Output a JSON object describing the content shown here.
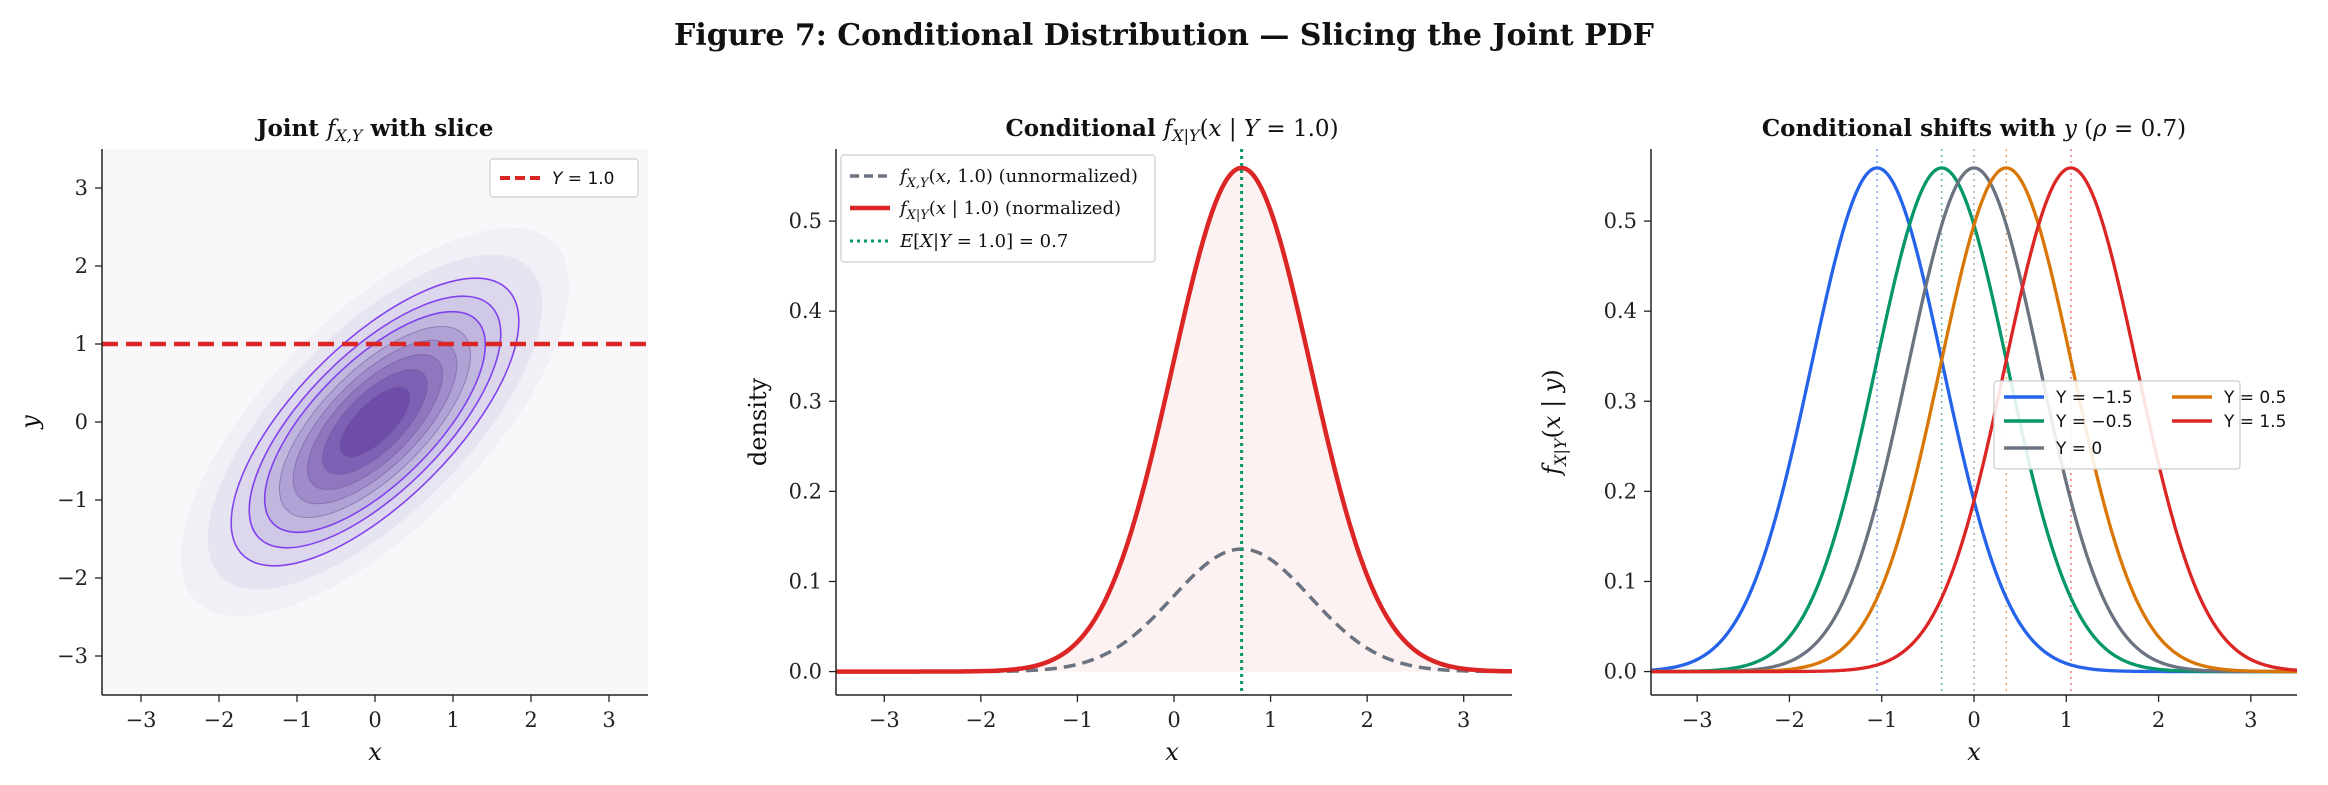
{
  "figure_title": "Figure 7: Conditional Distribution — Slicing the Joint PDF",
  "colors": {
    "purple": "#6d28d9",
    "red": "#dc2626",
    "gray": "#6b7280",
    "green": "#059669",
    "blue": "#2563eb",
    "orange": "#d97706"
  },
  "chart_data": [
    {
      "type": "contour",
      "title": "Joint f_{X,Y} with slice",
      "xlabel": "x",
      "ylabel": "y",
      "xlim": [
        -3.5,
        3.5
      ],
      "ylim": [
        -3.5,
        3.5
      ],
      "xticks": [
        "−3",
        "−2",
        "−1",
        "0",
        "1",
        "2",
        "3"
      ],
      "yticks": [
        "−3",
        "−2",
        "−1",
        "0",
        "1",
        "2",
        "3"
      ],
      "rho": 0.7,
      "slice_y": 1.0,
      "legend": [
        "Y = 1.0"
      ],
      "legend_position": "top-right"
    },
    {
      "type": "line",
      "title": "Conditional f_{X|Y}(x | Y = 1.0)",
      "xlabel": "x",
      "ylabel": "density",
      "xlim": [
        -3.5,
        3.5
      ],
      "ylim": [
        0,
        0.58
      ],
      "xticks": [
        "−3",
        "−2",
        "−1",
        "0",
        "1",
        "2",
        "3"
      ],
      "yticks": [
        "0.0",
        "0.1",
        "0.2",
        "0.3",
        "0.4",
        "0.5"
      ],
      "series": [
        {
          "name": "f_{X,Y}(x, 1.0) (unnormalized)",
          "mean": 0.7,
          "peak": 0.136,
          "style": "dashed"
        },
        {
          "name": "f_{X|Y}(x | 1.0) (normalized)",
          "mean": 0.7,
          "peak": 0.559,
          "style": "solid"
        }
      ],
      "vline": {
        "name": "E[X|Y = 1.0] = 0.7",
        "x": 0.7
      },
      "legend_position": "top-left"
    },
    {
      "type": "line",
      "title": "Conditional shifts with y (ρ = 0.7)",
      "xlabel": "x",
      "ylabel": "f_{X|Y}(x | y)",
      "xlim": [
        -3.5,
        3.5
      ],
      "ylim": [
        0,
        0.58
      ],
      "xticks": [
        "−3",
        "−2",
        "−1",
        "0",
        "1",
        "2",
        "3"
      ],
      "yticks": [
        "0.0",
        "0.1",
        "0.2",
        "0.3",
        "0.4",
        "0.5"
      ],
      "sigma": 0.714,
      "series": [
        {
          "name": "Y = −1.5",
          "mean": -1.05,
          "peak": 0.559
        },
        {
          "name": "Y = −0.5",
          "mean": -0.35,
          "peak": 0.559
        },
        {
          "name": "Y = 0",
          "mean": 0.0,
          "peak": 0.559
        },
        {
          "name": "Y = 0.5",
          "mean": 0.35,
          "peak": 0.559
        },
        {
          "name": "Y = 1.5",
          "mean": 1.05,
          "peak": 0.559
        }
      ],
      "legend_position": "center-right"
    }
  ]
}
